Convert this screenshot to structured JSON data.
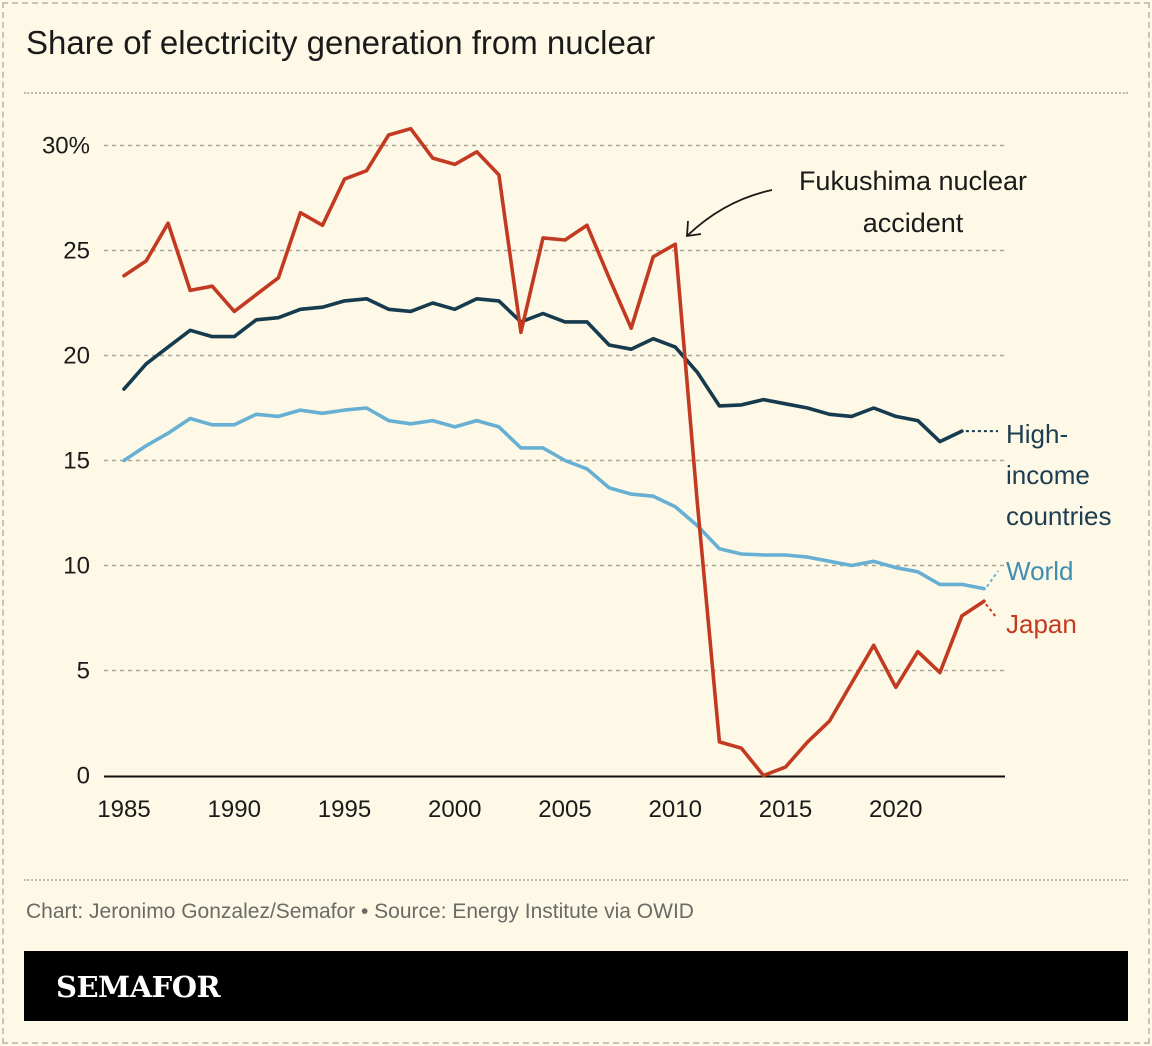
{
  "title": "Share of electricity generation from nuclear",
  "source": "Chart: Jeronimo Gonzalez/Semafor • Source: Energy Institute via OWID",
  "logo": "SEMAFOR",
  "chart_data": {
    "type": "line",
    "title": "Share of electricity generation from nuclear",
    "xlabel": "",
    "ylabel": "",
    "xlim": [
      1985,
      2024
    ],
    "ylim": [
      0,
      30
    ],
    "grid": true,
    "x_ticks": [
      "1985",
      "1990",
      "1995",
      "2000",
      "2005",
      "2010",
      "2015",
      "2020"
    ],
    "y_ticks": [
      {
        "value": 0,
        "label": "0"
      },
      {
        "value": 5,
        "label": "5"
      },
      {
        "value": 10,
        "label": "10"
      },
      {
        "value": 15,
        "label": "15"
      },
      {
        "value": 20,
        "label": "20"
      },
      {
        "value": 25,
        "label": "25"
      },
      {
        "value": 30,
        "label": "30%"
      }
    ],
    "annotation": {
      "lines": [
        "Fukushima nuclear",
        "accident"
      ],
      "year": 2010
    },
    "series": [
      {
        "name": "High-income countries",
        "label_lines": [
          "High-",
          "income",
          "countries"
        ],
        "color": "#163b4e",
        "label_color": "#1d3d50",
        "x_start": 1985,
        "values": [
          18.4,
          19.6,
          20.4,
          21.2,
          20.9,
          20.9,
          21.7,
          21.8,
          22.2,
          22.3,
          22.6,
          22.7,
          22.2,
          22.1,
          22.5,
          22.2,
          22.7,
          22.6,
          21.6,
          22.0,
          21.6,
          21.6,
          20.5,
          20.3,
          20.8,
          20.4,
          19.2,
          17.6,
          17.65,
          17.9,
          17.7,
          17.5,
          17.2,
          17.1,
          17.5,
          17.1,
          16.9,
          15.9,
          16.4
        ]
      },
      {
        "name": "World",
        "label_lines": [
          "World"
        ],
        "color": "#68b0d3",
        "label_color": "#3f8db0",
        "x_start": 1985,
        "values": [
          15.0,
          15.7,
          16.3,
          17.0,
          16.7,
          16.7,
          17.2,
          17.1,
          17.4,
          17.25,
          17.4,
          17.5,
          16.9,
          16.75,
          16.9,
          16.6,
          16.9,
          16.6,
          15.6,
          15.6,
          15.0,
          14.6,
          13.7,
          13.4,
          13.3,
          12.8,
          11.9,
          10.8,
          10.55,
          10.5,
          10.5,
          10.4,
          10.2,
          10.0,
          10.2,
          9.9,
          9.7,
          9.1,
          9.1,
          8.9
        ]
      },
      {
        "name": "Japan",
        "label_lines": [
          "Japan"
        ],
        "color": "#c23a22",
        "label_color": "#c23a22",
        "x_start": 1985,
        "values": [
          23.8,
          24.5,
          26.3,
          23.1,
          23.3,
          22.1,
          22.9,
          23.7,
          26.8,
          26.2,
          28.4,
          28.8,
          30.5,
          30.8,
          29.4,
          29.1,
          29.7,
          28.6,
          21.1,
          25.6,
          25.5,
          26.2,
          23.7,
          21.3,
          24.7,
          25.3,
          13.0,
          1.6,
          1.3,
          0.0,
          0.4,
          1.6,
          2.6,
          4.4,
          6.2,
          4.2,
          5.9,
          4.9,
          7.6,
          8.3
        ]
      }
    ]
  }
}
